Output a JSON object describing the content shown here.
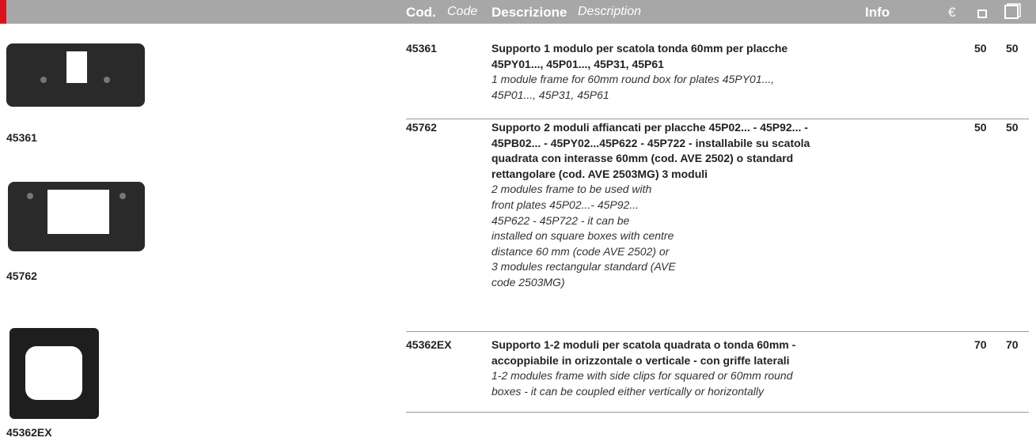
{
  "header": {
    "code": "Cod.",
    "code_en": "Code",
    "description": "Descrizione",
    "description_en": "Description",
    "info": "Info",
    "currency": "€"
  },
  "images": [
    {
      "caption": "45361"
    },
    {
      "caption": "45762"
    },
    {
      "caption": "45362EX"
    }
  ],
  "rows": [
    {
      "code": "45361",
      "description_it": [
        "Supporto 1 modulo per scatola tonda 60mm per placche",
        "45PY01..., 45P01..., 45P31, 45P61"
      ],
      "description_en": [
        "1 module frame for 60mm round box for plates 45PY01...,",
        "45P01..., 45P31, 45P61"
      ],
      "qty_small": 50,
      "qty_large": 50
    },
    {
      "code": "45762",
      "description_it": [
        "Supporto 2 moduli affiancati per placche 45P02... - 45P92... -",
        "45PB02... - 45PY02...45P622 - 45P722 - installabile su scatola",
        "quadrata con interasse 60mm (cod. AVE 2502) o standard",
        "rettangolare (cod. AVE 2503MG) 3 moduli"
      ],
      "description_en": [
        "2 modules frame to be used with",
        "front plates 45P02...- 45P92...",
        "45P622 - 45P722 - it can be",
        "installed on square boxes with centre",
        "distance 60 mm (code AVE 2502) or",
        "3 modules rectangular standard (AVE",
        "code 2503MG)"
      ],
      "qty_small": 50,
      "qty_large": 50
    },
    {
      "code": "45362EX",
      "description_it": [
        "Supporto 1-2 moduli per scatola quadrata o tonda 60mm -",
        "accoppiabile in orizzontale o verticale - con griffe laterali"
      ],
      "description_en": [
        "1-2 modules frame with side clips for squared or 60mm round",
        "boxes - it can be coupled either vertically or horizontally"
      ],
      "qty_small": 70,
      "qty_large": 70
    }
  ]
}
